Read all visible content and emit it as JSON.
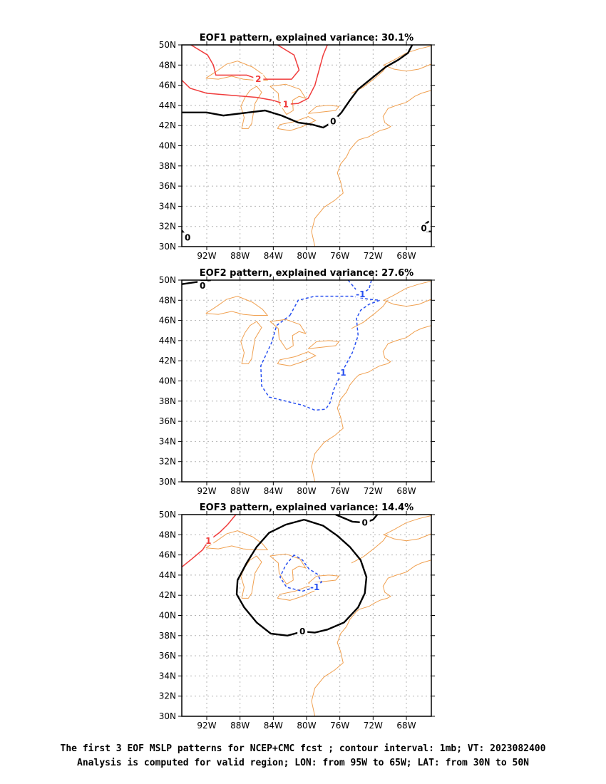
{
  "panels": [
    {
      "title": "EOF1 pattern, explained variance: 30.1%",
      "contours": [
        {
          "label": "2",
          "points": [
            [
              -93.9,
              50.0
            ],
            [
              -91.9,
              49.0
            ],
            [
              -91.2,
              48.0
            ],
            [
              -90.9,
              47.0
            ],
            [
              -89.5,
              47.0
            ],
            [
              -87.2,
              47.0
            ],
            [
              -85.8,
              46.6
            ],
            [
              -83.5,
              46.6
            ],
            [
              -81.8,
              46.6
            ],
            [
              -80.9,
              47.5
            ],
            [
              -81.5,
              49.0
            ],
            [
              -83.5,
              50.0
            ]
          ]
        },
        {
          "label": "1",
          "points": [
            [
              -95.0,
              46.5
            ],
            [
              -94.0,
              45.7
            ],
            [
              -92.0,
              45.2
            ],
            [
              -89.0,
              45.0
            ],
            [
              -86.0,
              44.8
            ],
            [
              -84.0,
              44.5
            ],
            [
              -82.5,
              44.1
            ],
            [
              -81.0,
              44.2
            ],
            [
              -79.8,
              44.7
            ],
            [
              -79.0,
              46.0
            ],
            [
              -78.5,
              47.5
            ],
            [
              -78.0,
              49.0
            ],
            [
              -77.5,
              50.0
            ]
          ]
        },
        {
          "label": "0",
          "points": [
            [
              -95.0,
              43.3
            ],
            [
              -92.0,
              43.3
            ],
            [
              -90.0,
              43.0
            ],
            [
              -87.0,
              43.3
            ],
            [
              -85.0,
              43.5
            ],
            [
              -83.0,
              43.0
            ],
            [
              -81.0,
              42.3
            ],
            [
              -79.3,
              42.1
            ],
            [
              -78.0,
              41.8
            ],
            [
              -76.8,
              42.4
            ],
            [
              -75.8,
              43.3
            ],
            [
              -74.8,
              44.5
            ],
            [
              -73.8,
              45.6
            ],
            [
              -72.0,
              46.8
            ],
            [
              -70.5,
              47.8
            ],
            [
              -69.0,
              48.5
            ],
            [
              -67.8,
              49.2
            ],
            [
              -67.3,
              50.0
            ]
          ]
        },
        {
          "label": "0",
          "points": [
            [
              -95.0,
              31.6
            ],
            [
              -94.7,
              31.3
            ],
            [
              -94.3,
              30.9
            ],
            [
              -93.9,
              30.6
            ]
          ]
        },
        {
          "label": "0",
          "points": [
            [
              -65.0,
              31.5
            ],
            [
              -65.6,
              31.5
            ],
            [
              -65.9,
              31.8
            ],
            [
              -65.8,
              32.2
            ],
            [
              -65.3,
              32.5
            ]
          ]
        }
      ]
    },
    {
      "title": "EOF2 pattern, explained variance: 27.6%",
      "contours": [
        {
          "label": "0",
          "points": [
            [
              -95.0,
              49.6
            ],
            [
              -92.5,
              49.9
            ],
            [
              -91.5,
              50.0
            ]
          ]
        },
        {
          "label": "-1",
          "points": [
            [
              -82.0,
              46.5
            ],
            [
              -81.0,
              48.0
            ],
            [
              -79.0,
              48.4
            ],
            [
              -76.5,
              48.4
            ],
            [
              -74.5,
              48.4
            ],
            [
              -72.5,
              48.1
            ],
            [
              -71.2,
              48.0
            ],
            [
              -72.5,
              47.6
            ],
            [
              -73.5,
              47.0
            ],
            [
              -74.0,
              46.2
            ],
            [
              -73.8,
              44.5
            ],
            [
              -74.5,
              42.8
            ],
            [
              -75.8,
              40.8
            ],
            [
              -76.7,
              39.2
            ],
            [
              -77.2,
              37.8
            ],
            [
              -77.7,
              37.2
            ],
            [
              -79.0,
              37.1
            ],
            [
              -80.5,
              37.6
            ],
            [
              -82.5,
              38.0
            ],
            [
              -84.5,
              38.4
            ],
            [
              -85.4,
              39.5
            ],
            [
              -85.5,
              41.5
            ],
            [
              -84.2,
              43.8
            ],
            [
              -83.6,
              45.5
            ],
            [
              -82.0,
              46.5
            ]
          ]
        },
        {
          "label": "-1",
          "points": [
            [
              -75.0,
              50.0
            ],
            [
              -74.0,
              49.0
            ],
            [
              -73.5,
              48.6
            ],
            [
              -72.5,
              49.1
            ],
            [
              -72.2,
              50.0
            ]
          ]
        }
      ]
    },
    {
      "title": "EOF3 pattern, explained variance: 14.4%",
      "contours": [
        {
          "label": "1",
          "points": [
            [
              -95.0,
              44.8
            ],
            [
              -93.8,
              45.6
            ],
            [
              -92.5,
              46.5
            ],
            [
              -91.8,
              47.4
            ],
            [
              -90.5,
              48.2
            ],
            [
              -89.5,
              49.0
            ],
            [
              -88.5,
              50.0
            ]
          ]
        },
        {
          "label": "0",
          "points": [
            [
              -80.3,
              49.5
            ],
            [
              -82.5,
              49.0
            ],
            [
              -84.5,
              48.2
            ],
            [
              -86.0,
              46.8
            ],
            [
              -87.2,
              45.2
            ],
            [
              -88.3,
              43.5
            ],
            [
              -88.4,
              42.1
            ],
            [
              -87.5,
              40.8
            ],
            [
              -86.0,
              39.3
            ],
            [
              -84.3,
              38.2
            ],
            [
              -82.3,
              38.0
            ],
            [
              -80.5,
              38.4
            ],
            [
              -79.0,
              38.3
            ],
            [
              -77.5,
              38.6
            ],
            [
              -75.5,
              39.3
            ],
            [
              -73.8,
              40.8
            ],
            [
              -73.0,
              42.2
            ],
            [
              -72.8,
              43.8
            ],
            [
              -73.5,
              45.5
            ],
            [
              -74.8,
              46.8
            ],
            [
              -76.3,
              47.9
            ],
            [
              -78.0,
              48.9
            ],
            [
              -80.3,
              49.5
            ]
          ]
        },
        {
          "label": "0",
          "points": [
            [
              -76.5,
              50.0
            ],
            [
              -74.5,
              49.3
            ],
            [
              -73.0,
              49.2
            ],
            [
              -72.0,
              49.5
            ],
            [
              -71.5,
              50.0
            ]
          ]
        },
        {
          "label": "-1",
          "points": [
            [
              -81.5,
              46.0
            ],
            [
              -82.5,
              45.0
            ],
            [
              -83.2,
              43.8
            ],
            [
              -82.4,
              42.8
            ],
            [
              -80.5,
              42.4
            ],
            [
              -79.0,
              42.8
            ],
            [
              -78.2,
              43.3
            ],
            [
              -78.7,
              44.1
            ],
            [
              -79.7,
              44.6
            ],
            [
              -80.5,
              45.5
            ],
            [
              -81.5,
              46.0
            ]
          ]
        }
      ]
    }
  ],
  "x_tick_labels": [
    "92W",
    "88W",
    "84W",
    "80W",
    "76W",
    "72W",
    "68W"
  ],
  "y_tick_labels": [
    "50N",
    "48N",
    "46N",
    "44N",
    "42N",
    "40N",
    "38N",
    "36N",
    "34N",
    "32N",
    "30N"
  ],
  "caption": {
    "line1": "The first 3 EOF MSLP patterns for NCEP+CMC fcst ; contour interval: 1mb; VT: 2023082400",
    "line2": "Analysis is computed for valid region; LON: from 95W to 65W; LAT: from 30N to 50N"
  },
  "colors": {
    "positive_contour": "#f03c3c",
    "zero_contour": "#000000",
    "negative_contour": "#2850f0",
    "coastline": "#f0a050",
    "grid": "#b4b4b4"
  },
  "chart_data": [
    {
      "type": "contour-map",
      "title": "EOF1 pattern, explained variance: 30.1%",
      "xlim": [
        -95,
        -65
      ],
      "ylim": [
        30,
        50
      ],
      "x_ticks": [
        -92,
        -88,
        -84,
        -80,
        -76,
        -72,
        -68
      ],
      "y_ticks": [
        30,
        32,
        34,
        36,
        38,
        40,
        42,
        44,
        46,
        48,
        50
      ],
      "grid": "dotted",
      "contour_levels": [
        2,
        1,
        0,
        0,
        0
      ]
    },
    {
      "type": "contour-map",
      "title": "EOF2 pattern, explained variance: 27.6%",
      "xlim": [
        -95,
        -65
      ],
      "ylim": [
        30,
        50
      ],
      "x_ticks": [
        -92,
        -88,
        -84,
        -80,
        -76,
        -72,
        -68
      ],
      "y_ticks": [
        30,
        32,
        34,
        36,
        38,
        40,
        42,
        44,
        46,
        48,
        50
      ],
      "grid": "dotted",
      "contour_levels": [
        0,
        -1,
        -1
      ]
    },
    {
      "type": "contour-map",
      "title": "EOF3 pattern, explained variance: 14.4%",
      "xlim": [
        -95,
        -65
      ],
      "ylim": [
        30,
        50
      ],
      "x_ticks": [
        -92,
        -88,
        -84,
        -80,
        -76,
        -72,
        -68
      ],
      "y_ticks": [
        30,
        32,
        34,
        36,
        38,
        40,
        42,
        44,
        46,
        48,
        50
      ],
      "grid": "dotted",
      "contour_levels": [
        1,
        0,
        0,
        -1
      ]
    }
  ]
}
